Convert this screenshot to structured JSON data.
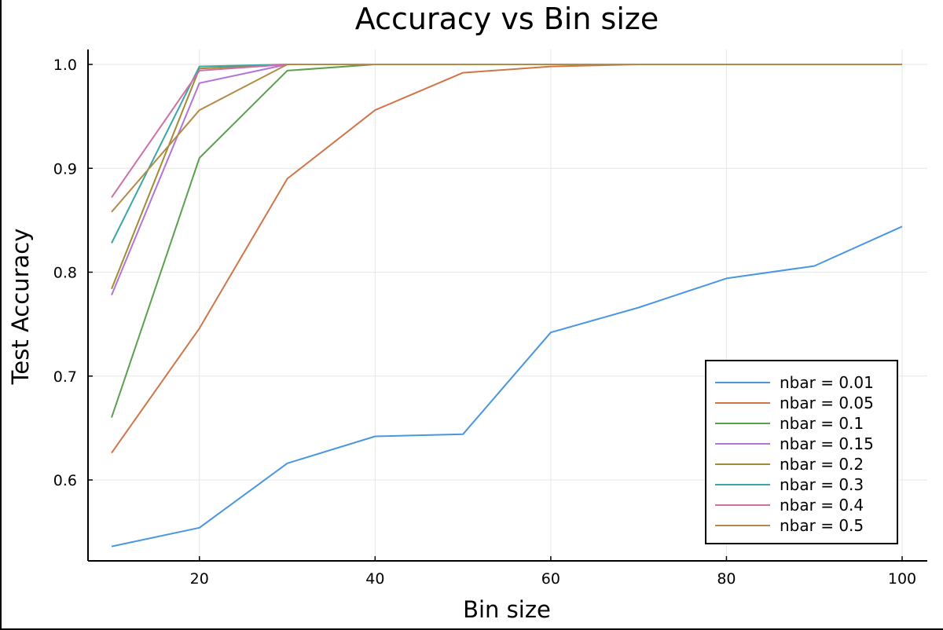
{
  "chart_data": {
    "type": "line",
    "title": "Accuracy vs Bin size",
    "xlabel": "Bin size",
    "ylabel": "Test Accuracy",
    "xlim": [
      7,
      103
    ],
    "ylim": [
      0.523,
      1.0
    ],
    "x_ticks": [
      20,
      40,
      60,
      80,
      100
    ],
    "x_tick_labels": [
      "20",
      "40",
      "60",
      "80",
      "100"
    ],
    "y_ticks": [
      0.6,
      0.7,
      0.8,
      0.9,
      1.0
    ],
    "y_tick_labels": [
      "0.6",
      "0.7",
      "0.8",
      "0.9",
      "1.0"
    ],
    "grid": true,
    "legend_position": "bottom-right",
    "x": [
      10,
      20,
      30,
      40,
      50,
      60,
      70,
      80,
      90,
      100
    ],
    "series": [
      {
        "name": "nbar = 0.01",
        "color": "#4a96e0",
        "values": [
          0.536,
          0.554,
          0.616,
          0.642,
          0.644,
          0.742,
          0.766,
          0.794,
          0.806,
          0.844
        ]
      },
      {
        "name": "nbar = 0.05",
        "color": "#d0754a",
        "values": [
          0.626,
          0.746,
          0.89,
          0.956,
          0.992,
          0.998,
          1.0,
          1.0,
          1.0,
          1.0
        ]
      },
      {
        "name": "nbar = 0.1",
        "color": "#5aa04e",
        "values": [
          0.66,
          0.91,
          0.994,
          1.0,
          1.0,
          1.0,
          1.0,
          1.0,
          1.0,
          1.0
        ]
      },
      {
        "name": "nbar = 0.15",
        "color": "#b473d6",
        "values": [
          0.778,
          0.982,
          1.0,
          1.0,
          1.0,
          1.0,
          1.0,
          1.0,
          1.0,
          1.0
        ]
      },
      {
        "name": "nbar = 0.2",
        "color": "#a08c35",
        "values": [
          0.784,
          0.996,
          1.0,
          1.0,
          1.0,
          1.0,
          1.0,
          1.0,
          1.0,
          1.0
        ]
      },
      {
        "name": "nbar = 0.3",
        "color": "#3ba6a6",
        "values": [
          0.828,
          0.998,
          1.0,
          1.0,
          1.0,
          1.0,
          1.0,
          1.0,
          1.0,
          1.0
        ]
      },
      {
        "name": "nbar = 0.4",
        "color": "#d16ea6",
        "values": [
          0.872,
          0.994,
          1.0,
          1.0,
          1.0,
          1.0,
          1.0,
          1.0,
          1.0,
          1.0
        ]
      },
      {
        "name": "nbar = 0.5",
        "color": "#b48a48",
        "values": [
          0.858,
          0.956,
          1.0,
          1.0,
          1.0,
          1.0,
          1.0,
          1.0,
          1.0,
          1.0
        ]
      }
    ]
  }
}
